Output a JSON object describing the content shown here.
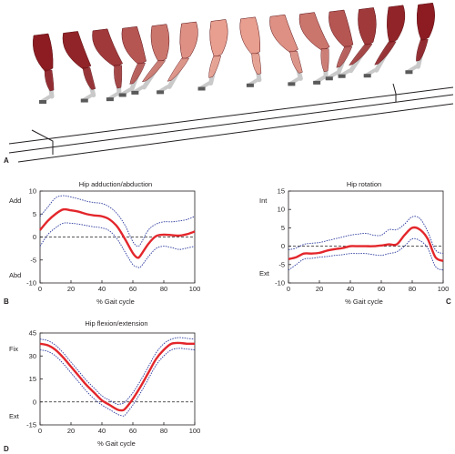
{
  "panels": {
    "a": "A",
    "b": "B",
    "c": "C",
    "d": "D"
  },
  "colors": {
    "mean": "#e3262b",
    "sd": "#2b3a9e",
    "zero": "#231f20",
    "muscle_dark": "#8c1c22",
    "muscle_light": "#e9a191",
    "bone": "#c9c9c9"
  },
  "illustration": {
    "description_icon": "walking-leg-sequence-icon",
    "frames": 14
  },
  "chart_data": [
    {
      "id": "b",
      "type": "line",
      "title": "Hip adduction/abduction",
      "xlabel": "% Gait cycle",
      "ylabel": "",
      "side_labels": {
        "top": "Add",
        "bottom": "Abd"
      },
      "xlim": [
        0,
        100
      ],
      "ylim": [
        -10,
        10
      ],
      "xticks": [
        0,
        20,
        40,
        60,
        80,
        100
      ],
      "yticks": [
        -10,
        -5,
        0,
        5,
        10
      ],
      "x": [
        0,
        5,
        10,
        15,
        20,
        25,
        30,
        35,
        40,
        45,
        50,
        55,
        60,
        63,
        65,
        70,
        75,
        80,
        85,
        90,
        95,
        100
      ],
      "series": [
        {
          "role": "mean",
          "values": [
            1.5,
            3.5,
            5.0,
            6.0,
            5.8,
            5.5,
            5.0,
            4.7,
            4.5,
            3.8,
            2.2,
            -0.5,
            -3.5,
            -4.5,
            -4.0,
            -1.5,
            0.2,
            0.5,
            0.4,
            0.3,
            0.6,
            1.2
          ]
        },
        {
          "role": "upper",
          "values": [
            4.5,
            6.5,
            8.5,
            9.0,
            8.7,
            8.3,
            7.8,
            7.5,
            7.3,
            6.5,
            5.0,
            2.5,
            -1.0,
            -2.0,
            -1.5,
            1.5,
            2.8,
            3.3,
            3.3,
            3.5,
            3.8,
            4.5
          ]
        },
        {
          "role": "lower",
          "values": [
            -2.0,
            0.5,
            2.0,
            3.0,
            3.0,
            2.8,
            2.5,
            2.2,
            2.0,
            1.3,
            -0.5,
            -3.3,
            -6.0,
            -6.5,
            -6.5,
            -4.3,
            -2.5,
            -2.0,
            -2.3,
            -2.7,
            -2.4,
            -2.0
          ]
        }
      ]
    },
    {
      "id": "c",
      "type": "line",
      "title": "Hip rotation",
      "xlabel": "% Gait cycle",
      "ylabel": "",
      "side_labels": {
        "top": "Int",
        "bottom": "Ext"
      },
      "xlim": [
        0,
        100
      ],
      "ylim": [
        -10,
        15
      ],
      "xticks": [
        0,
        20,
        40,
        60,
        80,
        100
      ],
      "yticks": [
        -10,
        -5,
        0,
        5,
        10,
        15
      ],
      "x": [
        0,
        5,
        10,
        15,
        20,
        25,
        30,
        35,
        40,
        45,
        50,
        55,
        60,
        65,
        70,
        75,
        80,
        85,
        90,
        95,
        100
      ],
      "series": [
        {
          "role": "mean",
          "values": [
            -3.5,
            -3.0,
            -2.0,
            -2.0,
            -1.8,
            -1.2,
            -0.8,
            -0.5,
            0.0,
            0.0,
            0.0,
            0.0,
            0.2,
            0.5,
            0.5,
            3.0,
            5.0,
            4.5,
            2.0,
            -3.0,
            -4.0
          ]
        },
        {
          "role": "upper",
          "values": [
            -1.0,
            -0.5,
            0.5,
            0.8,
            1.0,
            1.5,
            2.0,
            2.5,
            3.0,
            3.3,
            3.5,
            3.0,
            3.0,
            4.5,
            4.5,
            6.0,
            8.0,
            7.5,
            4.0,
            -1.0,
            -2.0
          ]
        },
        {
          "role": "lower",
          "values": [
            -6.5,
            -5.0,
            -3.5,
            -3.3,
            -3.0,
            -2.8,
            -2.5,
            -2.3,
            -2.0,
            -2.0,
            -2.0,
            -2.3,
            -2.5,
            -2.0,
            -1.5,
            0.0,
            2.0,
            1.5,
            -0.5,
            -5.5,
            -6.5
          ]
        }
      ]
    },
    {
      "id": "d",
      "type": "line",
      "title": "Hip flexion/extension",
      "xlabel": "% Gait cycle",
      "ylabel": "",
      "side_labels": {
        "top": "Fix",
        "bottom": "Ext"
      },
      "xlim": [
        0,
        100
      ],
      "ylim": [
        -15,
        45
      ],
      "xticks": [
        0,
        20,
        40,
        60,
        80,
        100
      ],
      "yticks": [
        -15,
        0,
        15,
        30,
        45
      ],
      "x": [
        0,
        5,
        10,
        15,
        20,
        25,
        30,
        35,
        40,
        45,
        50,
        53,
        55,
        60,
        65,
        70,
        75,
        80,
        85,
        90,
        95,
        100
      ],
      "series": [
        {
          "role": "mean",
          "values": [
            38,
            37,
            34,
            29,
            23,
            17,
            11,
            6,
            1,
            -2,
            -5,
            -5.5,
            -4.5,
            2,
            10,
            19,
            28,
            34,
            38,
            38.5,
            38,
            38
          ]
        },
        {
          "role": "upper",
          "values": [
            41,
            40,
            37,
            32,
            26,
            20,
            14,
            9,
            4,
            1,
            -1.5,
            -1,
            0,
            6,
            14,
            23,
            32,
            38,
            41,
            42,
            41.5,
            41
          ]
        },
        {
          "role": "lower",
          "values": [
            34,
            33,
            30,
            25,
            19,
            13,
            7,
            2,
            -2,
            -5,
            -8,
            -9,
            -8.5,
            -2,
            6,
            15,
            24,
            30,
            34,
            35,
            34.5,
            34
          ]
        }
      ]
    }
  ]
}
